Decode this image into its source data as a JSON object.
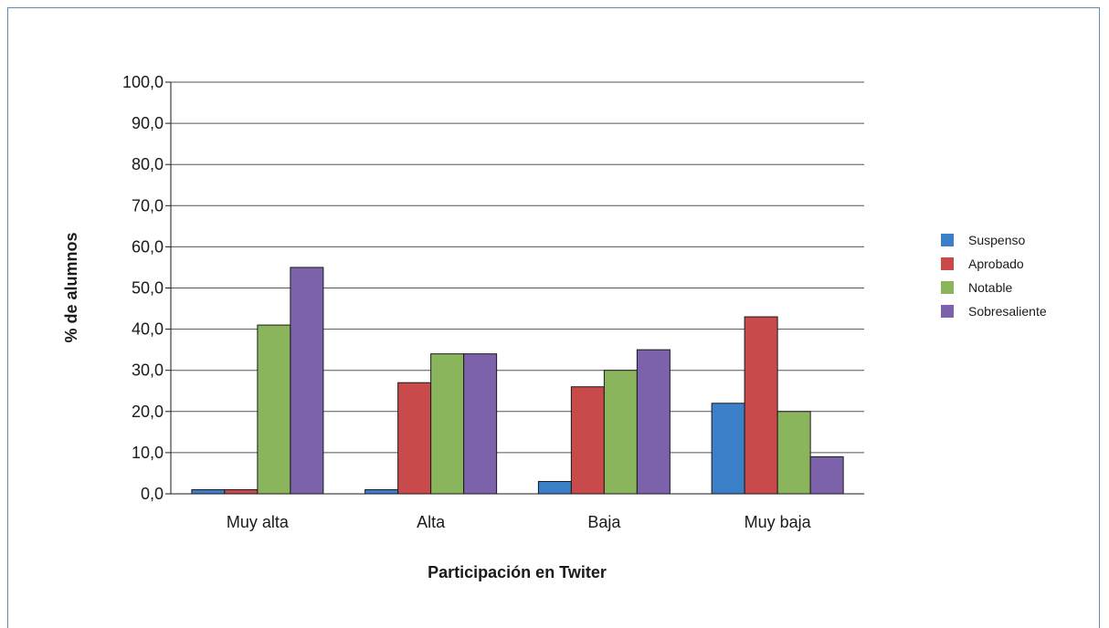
{
  "chart_data": {
    "type": "bar",
    "categories": [
      "Muy alta",
      "Alta",
      "Baja",
      "Muy baja"
    ],
    "series": [
      {
        "name": "Suspenso",
        "values": [
          1,
          1,
          3,
          22
        ],
        "color": "#3b7fc8"
      },
      {
        "name": "Aprobado",
        "values": [
          1,
          27,
          26,
          43
        ],
        "color": "#c94a4a"
      },
      {
        "name": "Notable",
        "values": [
          41,
          34,
          30,
          20
        ],
        "color": "#8bb55c"
      },
      {
        "name": "Sobresaliente",
        "values": [
          55,
          34,
          35,
          9
        ],
        "color": "#7b62aa"
      }
    ],
    "y_ticks": [
      "0,0",
      "10,0",
      "20,0",
      "30,0",
      "40,0",
      "50,0",
      "60,0",
      "70,0",
      "80,0",
      "90,0",
      "100,0"
    ],
    "xlabel": "Participación en Twiter",
    "ylabel": "% de alumnos",
    "ylim": [
      0,
      100
    ],
    "grid": true,
    "legend_position": "right"
  }
}
